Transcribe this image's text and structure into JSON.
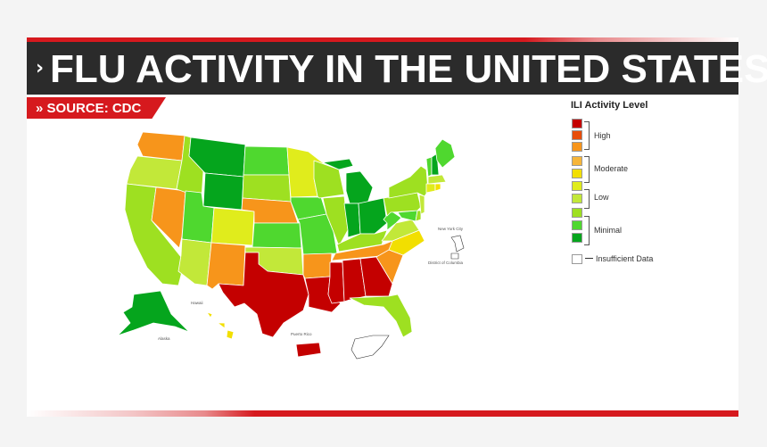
{
  "header": {
    "chevron": "›",
    "title": "FLU ACTIVITY IN THE UNITED STATES",
    "source_chevron": "»",
    "source": "SOURCE: CDC"
  },
  "legend": {
    "title": "ILI Activity Level",
    "levels": [
      {
        "level": 10,
        "color": "#c40000"
      },
      {
        "level": 9,
        "color": "#e84d0a"
      },
      {
        "level": 8,
        "color": "#f7951b"
      },
      {
        "level": 7,
        "color": "#f6b53a"
      },
      {
        "level": 6,
        "color": "#f2df00"
      },
      {
        "level": 5,
        "color": "#e0ec1c"
      },
      {
        "level": 4,
        "color": "#c2e839"
      },
      {
        "level": 3,
        "color": "#9ee021"
      },
      {
        "level": 2,
        "color": "#4fd82f"
      },
      {
        "level": 1,
        "color": "#05a51d"
      }
    ],
    "groups": [
      "High",
      "Moderate",
      "Low",
      "Minimal"
    ],
    "insufficient": "Insufficient Data"
  },
  "map": {
    "labels": {
      "hawaii": "Hawaii",
      "alaska": "Alaska",
      "puerto_rico": "Puerto Rico",
      "nyc": "New York City",
      "dc": "District of Columbia"
    },
    "states": {
      "WA": 8,
      "OR": 4,
      "CA": 3,
      "NV": 8,
      "ID": 3,
      "MT": 1,
      "WY": 1,
      "UT": 2,
      "AZ": 4,
      "CO": 5,
      "NM": 8,
      "ND": 2,
      "SD": 3,
      "NE": 8,
      "KS": 2,
      "OK": 4,
      "TX": 10,
      "MN": 5,
      "IA": 2,
      "MO": 2,
      "AR": 8,
      "LA": 10,
      "WI": 3,
      "IL": 3,
      "MI": 1,
      "IN": 1,
      "OH": 1,
      "KY": 3,
      "TN": 8,
      "MS": 10,
      "AL": 10,
      "GA": 10,
      "FL": 3,
      "SC": 8,
      "NC": 6,
      "VA": 4,
      "WV": 2,
      "PA": 3,
      "NY": 3,
      "VT": 2,
      "NH": 1,
      "ME": 2,
      "MA": 4,
      "CT": 5,
      "RI": 6,
      "NJ": 4,
      "DE": 3,
      "MD": 2,
      "AK": 1,
      "HI": 6,
      "PR": 10,
      "NYC": 0,
      "DC": 0
    }
  }
}
